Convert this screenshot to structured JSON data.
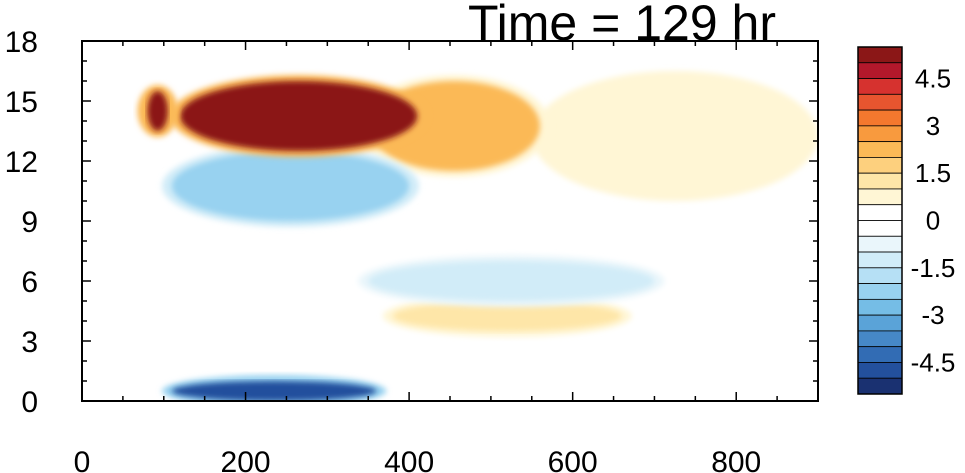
{
  "chart_data": {
    "type": "heatmap",
    "title": "Time = 129 hr",
    "xlabel": "",
    "ylabel": "",
    "xlim": [
      0,
      900
    ],
    "ylim": [
      0,
      18
    ],
    "x_ticks": [
      0,
      200,
      400,
      600,
      800
    ],
    "y_ticks": [
      0,
      3,
      6,
      9,
      12,
      15,
      18
    ],
    "colorbar": {
      "levels": [
        -5.5,
        -5,
        -4.5,
        -4,
        -3.5,
        -3,
        -2.5,
        -2,
        -1.5,
        -1,
        -0.5,
        0,
        0.5,
        1,
        1.5,
        2,
        2.5,
        3,
        3.5,
        4,
        4.5,
        5,
        5.5
      ],
      "labels": [
        "4.5",
        "3",
        "1.5",
        "0",
        "-1.5",
        "-3",
        "-4.5"
      ],
      "label_values": [
        4.5,
        3,
        1.5,
        0,
        -1.5,
        -3,
        -4.5
      ],
      "colors_top_to_bottom": [
        "#8b1717",
        "#b2182b",
        "#d6322f",
        "#e7552f",
        "#f4782e",
        "#f89a3e",
        "#fbb957",
        "#fdd07e",
        "#fee6a8",
        "#fff6d5",
        "#ffffff",
        "#ffffff",
        "#eaf6fb",
        "#d1ecf8",
        "#b6e0f5",
        "#98d2f0",
        "#75bde6",
        "#5aa3d8",
        "#4688c7",
        "#326cb4",
        "#23509d",
        "#1a3171"
      ]
    },
    "features": [
      {
        "name": "upper jet",
        "x_range": [
          120,
          410
        ],
        "y_range": [
          12.5,
          16
        ],
        "value": 5
      },
      {
        "name": "jet tail",
        "x_range": [
          350,
          560
        ],
        "y_range": [
          11.5,
          16
        ],
        "value": 2
      },
      {
        "name": "upper diffuse band",
        "x_range": [
          550,
          900
        ],
        "y_range": [
          10,
          16.5
        ],
        "value": 0.6
      },
      {
        "name": "negative band below jet",
        "x_range": [
          110,
          400
        ],
        "y_range": [
          9,
          12.5
        ],
        "value": -2.5
      },
      {
        "name": "surface negative",
        "x_range": [
          110,
          360
        ],
        "y_range": [
          0,
          1
        ],
        "value": -5
      },
      {
        "name": "mid-level negative",
        "x_range": [
          350,
          700
        ],
        "y_range": [
          5,
          7
        ],
        "value": -1.5
      },
      {
        "name": "mid-level positive",
        "x_range": [
          380,
          660
        ],
        "y_range": [
          3.5,
          5
        ],
        "value": 1.2
      },
      {
        "name": "positive column",
        "x_range": [
          80,
          105
        ],
        "y_range": [
          13.5,
          15.5
        ],
        "value": 5
      }
    ]
  }
}
